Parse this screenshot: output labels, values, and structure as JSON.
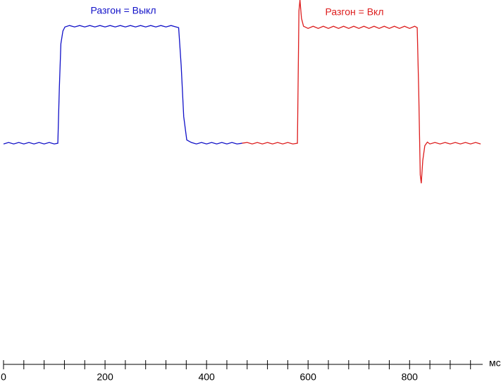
{
  "chart_data": {
    "type": "line",
    "x_unit": "мс",
    "xlim": [
      0,
      944
    ],
    "ylim": [
      0,
      100
    ],
    "xticks": [
      0,
      200,
      400,
      600,
      800
    ],
    "xminorticks": [
      40,
      80,
      120,
      160,
      240,
      280,
      320,
      360,
      440,
      480,
      520,
      560,
      640,
      680,
      720,
      760,
      840,
      880,
      920
    ],
    "series": [
      {
        "name": "Разгон = Выкл",
        "color": "#1010c8",
        "x": [
          0,
          10,
          20,
          30,
          40,
          50,
          60,
          70,
          80,
          90,
          100,
          107,
          110,
          113,
          117,
          121,
          130,
          140,
          150,
          160,
          170,
          180,
          190,
          200,
          210,
          220,
          230,
          240,
          250,
          260,
          270,
          280,
          290,
          300,
          310,
          320,
          330,
          340,
          345,
          350,
          355,
          361,
          370,
          380,
          390,
          400,
          410,
          420,
          430,
          440,
          450,
          460,
          470
        ],
        "values": [
          60.5,
          60.9,
          60.5,
          60.9,
          60.5,
          60.9,
          60.5,
          60.9,
          60.5,
          60.9,
          60.5,
          60.7,
          76,
          88,
          91.5,
          92.6,
          93.0,
          92.6,
          93.0,
          92.6,
          93.0,
          92.6,
          93.0,
          92.6,
          93.0,
          92.6,
          93.0,
          92.6,
          93.0,
          92.6,
          93.0,
          92.6,
          93.0,
          92.6,
          93.0,
          92.6,
          93.0,
          92.6,
          92.4,
          82,
          68,
          61.6,
          60.9,
          60.5,
          60.9,
          60.5,
          60.9,
          60.5,
          60.9,
          60.5,
          60.9,
          60.5,
          60.7
        ]
      },
      {
        "name": "Разгон = Вкл",
        "color": "#dd1c1c",
        "x": [
          470,
          480,
          490,
          500,
          510,
          520,
          530,
          540,
          550,
          560,
          570,
          579,
          582,
          584,
          587,
          591,
          600,
          610,
          620,
          630,
          640,
          650,
          660,
          670,
          680,
          690,
          700,
          710,
          720,
          730,
          740,
          750,
          760,
          770,
          780,
          790,
          800,
          810,
          815,
          818,
          821,
          823,
          826,
          830,
          835,
          840,
          850,
          860,
          870,
          880,
          890,
          900,
          910,
          920,
          930,
          940
        ],
        "values": [
          60.7,
          60.9,
          60.5,
          60.9,
          60.5,
          60.9,
          60.5,
          60.9,
          60.5,
          60.9,
          60.5,
          60.7,
          97,
          100,
          95,
          92.8,
          92.2,
          92.8,
          92.2,
          92.8,
          92.2,
          92.8,
          92.2,
          92.8,
          92.2,
          92.8,
          92.2,
          92.8,
          92.2,
          92.8,
          92.2,
          92.8,
          92.2,
          92.8,
          92.2,
          92.8,
          92.2,
          92.8,
          92.4,
          75,
          52,
          49.7,
          56,
          60,
          61,
          60.5,
          60.9,
          60.5,
          60.9,
          60.5,
          60.9,
          60.5,
          60.9,
          60.5,
          60.9,
          60.5
        ]
      }
    ]
  }
}
